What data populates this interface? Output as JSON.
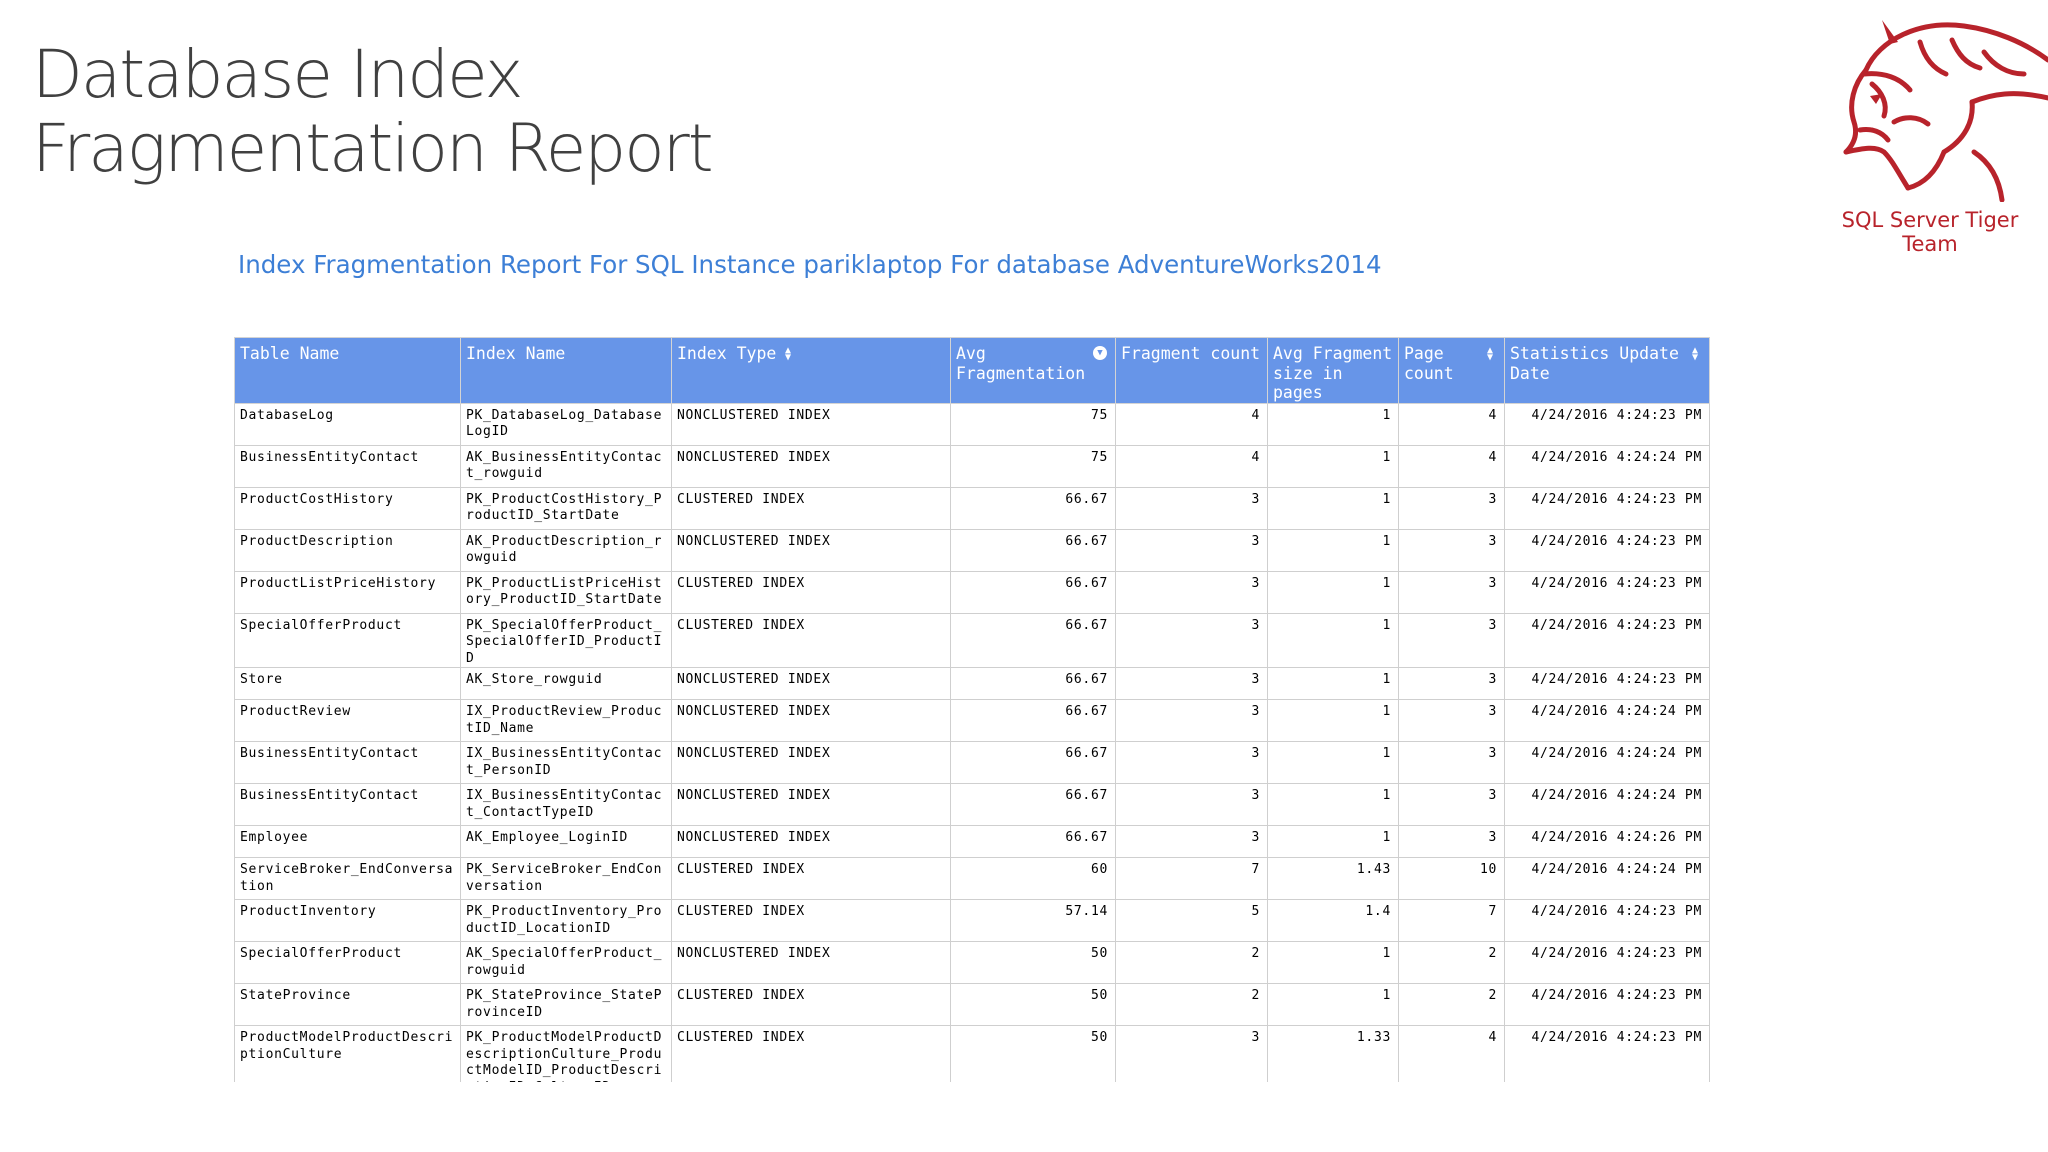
{
  "slide": {
    "title_line1": "Database Index",
    "title_line2": "Fragmentation Report"
  },
  "logo": {
    "text": "SQL Server Tiger Team",
    "icon": "tiger-head-icon",
    "color": "#b8232b"
  },
  "report": {
    "heading": "Index Fragmentation Report For SQL Instance pariklaptop For database AdventureWorks2014",
    "heading_color": "#3d7fd6",
    "header_color": "#6795e8"
  },
  "table": {
    "columns": [
      {
        "label": "Table Name",
        "sort": null
      },
      {
        "label": "Index Name",
        "sort": null
      },
      {
        "label": "Index Type",
        "sort": "sortable"
      },
      {
        "label": "Avg Fragmentation",
        "sort": "descending"
      },
      {
        "label": "Fragment count",
        "sort": null
      },
      {
        "label": "Avg Fragment size in pages",
        "sort": null
      },
      {
        "label": "Page count",
        "sort": "sortable"
      },
      {
        "label": "Statistics Update Date",
        "sort": "sortable"
      }
    ],
    "rows": [
      {
        "table": "DatabaseLog",
        "index": "PK_DatabaseLog_DatabaseLogID",
        "type": "NONCLUSTERED INDEX",
        "avg_frag": "75",
        "frag_count": "4",
        "avg_size": "1",
        "pages": "4",
        "stats_date": "4/24/2016 4:24:23 PM"
      },
      {
        "table": "BusinessEntityContact",
        "index": "AK_BusinessEntityContact_rowguid",
        "type": "NONCLUSTERED INDEX",
        "avg_frag": "75",
        "frag_count": "4",
        "avg_size": "1",
        "pages": "4",
        "stats_date": "4/24/2016 4:24:24 PM"
      },
      {
        "table": "ProductCostHistory",
        "index": "PK_ProductCostHistory_ProductID_StartDate",
        "type": "CLUSTERED INDEX",
        "avg_frag": "66.67",
        "frag_count": "3",
        "avg_size": "1",
        "pages": "3",
        "stats_date": "4/24/2016 4:24:23 PM"
      },
      {
        "table": "ProductDescription",
        "index": "AK_ProductDescription_rowguid",
        "type": "NONCLUSTERED INDEX",
        "avg_frag": "66.67",
        "frag_count": "3",
        "avg_size": "1",
        "pages": "3",
        "stats_date": "4/24/2016 4:24:23 PM"
      },
      {
        "table": "ProductListPriceHistory",
        "index": "PK_ProductListPriceHistory_ProductID_StartDate",
        "type": "CLUSTERED INDEX",
        "avg_frag": "66.67",
        "frag_count": "3",
        "avg_size": "1",
        "pages": "3",
        "stats_date": "4/24/2016 4:24:23 PM"
      },
      {
        "table": "SpecialOfferProduct",
        "index": "PK_SpecialOfferProduct_SpecialOfferID_ProductID",
        "type": "CLUSTERED INDEX",
        "avg_frag": "66.67",
        "frag_count": "3",
        "avg_size": "1",
        "pages": "3",
        "stats_date": "4/24/2016 4:24:23 PM"
      },
      {
        "table": "Store",
        "index": "AK_Store_rowguid",
        "type": "NONCLUSTERED INDEX",
        "avg_frag": "66.67",
        "frag_count": "3",
        "avg_size": "1",
        "pages": "3",
        "stats_date": "4/24/2016 4:24:23 PM"
      },
      {
        "table": "ProductReview",
        "index": "IX_ProductReview_ProductID_Name",
        "type": "NONCLUSTERED INDEX",
        "avg_frag": "66.67",
        "frag_count": "3",
        "avg_size": "1",
        "pages": "3",
        "stats_date": "4/24/2016 4:24:24 PM"
      },
      {
        "table": "BusinessEntityContact",
        "index": "IX_BusinessEntityContact_PersonID",
        "type": "NONCLUSTERED INDEX",
        "avg_frag": "66.67",
        "frag_count": "3",
        "avg_size": "1",
        "pages": "3",
        "stats_date": "4/24/2016 4:24:24 PM"
      },
      {
        "table": "BusinessEntityContact",
        "index": "IX_BusinessEntityContact_ContactTypeID",
        "type": "NONCLUSTERED INDEX",
        "avg_frag": "66.67",
        "frag_count": "3",
        "avg_size": "1",
        "pages": "3",
        "stats_date": "4/24/2016 4:24:24 PM"
      },
      {
        "table": "Employee",
        "index": "AK_Employee_LoginID",
        "type": "NONCLUSTERED INDEX",
        "avg_frag": "66.67",
        "frag_count": "3",
        "avg_size": "1",
        "pages": "3",
        "stats_date": "4/24/2016 4:24:26 PM"
      },
      {
        "table": "ServiceBroker_EndConversation",
        "index": "PK_ServiceBroker_EndConversation",
        "type": "CLUSTERED INDEX",
        "avg_frag": "60",
        "frag_count": "7",
        "avg_size": "1.43",
        "pages": "10",
        "stats_date": "4/24/2016 4:24:24 PM"
      },
      {
        "table": "ProductInventory",
        "index": "PK_ProductInventory_ProductID_LocationID",
        "type": "CLUSTERED INDEX",
        "avg_frag": "57.14",
        "frag_count": "5",
        "avg_size": "1.4",
        "pages": "7",
        "stats_date": "4/24/2016 4:24:23 PM"
      },
      {
        "table": "SpecialOfferProduct",
        "index": "AK_SpecialOfferProduct_rowguid",
        "type": "NONCLUSTERED INDEX",
        "avg_frag": "50",
        "frag_count": "2",
        "avg_size": "1",
        "pages": "2",
        "stats_date": "4/24/2016 4:24:23 PM"
      },
      {
        "table": "StateProvince",
        "index": "PK_StateProvince_StateProvinceID",
        "type": "CLUSTERED INDEX",
        "avg_frag": "50",
        "frag_count": "2",
        "avg_size": "1",
        "pages": "2",
        "stats_date": "4/24/2016 4:24:23 PM"
      },
      {
        "table": "ProductModelProductDescriptionCulture",
        "index": "PK_ProductModelProductDescriptionCulture_ProductModelID_ProductDescriptionID_CultureID",
        "type": "CLUSTERED INDEX",
        "avg_frag": "50",
        "frag_count": "3",
        "avg_size": "1.33",
        "pages": "4",
        "stats_date": "4/24/2016 4:24:23 PM"
      }
    ]
  }
}
